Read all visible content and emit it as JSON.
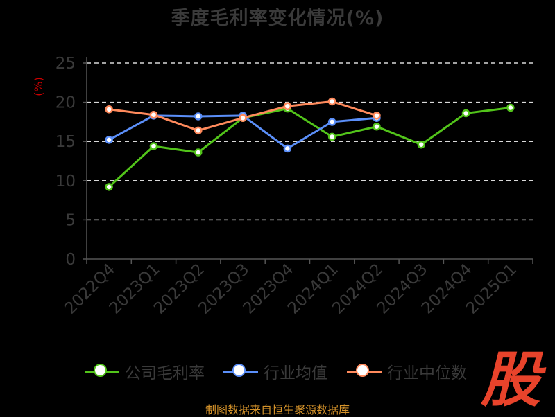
{
  "title": "季度毛利率变化情况(%)",
  "source_note": "制图数据来自恒生聚源数据库",
  "watermark_text": "股",
  "legend": {
    "items": [
      {
        "label": "公司毛利率",
        "color": "#52c41a"
      },
      {
        "label": "行业均值",
        "color": "#5b8ff9"
      },
      {
        "label": "行业中位数",
        "color": "#ff8a5c"
      }
    ]
  },
  "chart_data": {
    "type": "line",
    "title": "季度毛利率变化情况(%)",
    "ylabel": "(%)",
    "xlabel": "",
    "categories": [
      "2022Q4",
      "2023Q1",
      "2023Q2",
      "2023Q3",
      "2023Q4",
      "2024Q1",
      "2024Q2",
      "2024Q3",
      "2024Q4",
      "2025Q1"
    ],
    "ylim": [
      0,
      25
    ],
    "yticks": [
      0,
      5,
      10,
      15,
      20,
      25
    ],
    "grid": true,
    "legend_position": "bottom",
    "series": [
      {
        "name": "公司毛利率",
        "color": "#52c41a",
        "values": [
          9.2,
          14.4,
          13.6,
          18.0,
          19.2,
          15.6,
          16.9,
          14.6,
          18.6,
          19.3
        ]
      },
      {
        "name": "行业均值",
        "color": "#5b8ff9",
        "values": [
          15.2,
          18.3,
          18.2,
          18.3,
          14.1,
          17.5,
          18.0,
          null,
          null,
          null
        ]
      },
      {
        "name": "行业中位数",
        "color": "#ff8a5c",
        "values": [
          19.1,
          18.4,
          16.4,
          18.0,
          19.5,
          20.1,
          18.3,
          null,
          null,
          null
        ]
      }
    ]
  }
}
